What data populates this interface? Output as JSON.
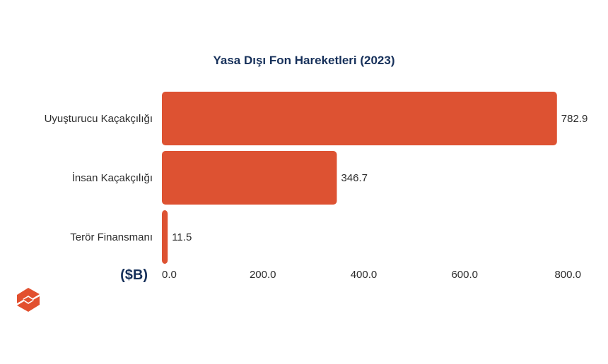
{
  "chart_data": {
    "type": "bar",
    "orientation": "horizontal",
    "title": "Yasa Dışı Fon Hareketleri (2023)",
    "unit_label": "($B)",
    "categories": [
      "Uyuşturucu Kaçakçılığı",
      "İnsan Kaçakçılığı",
      "Terör Finansmanı"
    ],
    "values": [
      782.9,
      346.7,
      11.5
    ],
    "value_labels": [
      "782.9",
      "346.7",
      "11.5"
    ],
    "xlim": [
      0,
      800
    ],
    "ticks": [
      0,
      200,
      400,
      600,
      800
    ],
    "tick_labels": [
      "0.0",
      "200.0",
      "400.0",
      "600.0",
      "800.0"
    ],
    "grid": false,
    "legend": "none",
    "bar_color": "#dd5232"
  },
  "logo": {
    "icon": "brand-s-logo-icon",
    "color": "#e2502f"
  }
}
